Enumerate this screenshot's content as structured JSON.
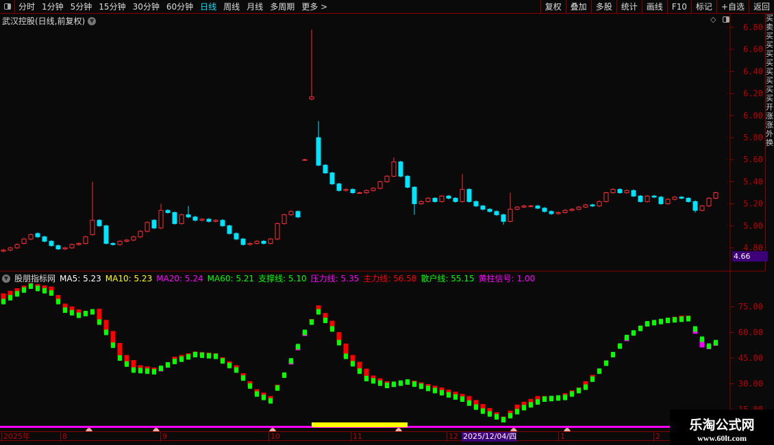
{
  "toolbar": {
    "periods": [
      "分时",
      "1分钟",
      "5分钟",
      "15分钟",
      "30分钟",
      "60分钟",
      "日线",
      "周线",
      "月线",
      "多周期",
      "更多 >"
    ],
    "active_period": "日线",
    "buttons": [
      "复权",
      "叠加",
      "多股",
      "统计",
      "画线",
      "F10",
      "标记",
      "+自选",
      "返回"
    ]
  },
  "chart_title": "武汉控股(日线,前复权)",
  "price_axis": {
    "ticks": [
      "6.80",
      "6.60",
      "6.40",
      "6.20",
      "6.00",
      "5.80",
      "5.60",
      "5.40",
      "5.20",
      "5.00",
      "4.80"
    ],
    "current": "4.66"
  },
  "indicator": {
    "name": "股朋指标网",
    "legend": [
      {
        "label": "MA5: 5.23",
        "color": "#ffffff"
      },
      {
        "label": "MA10: 5.23",
        "color": "#ffff00"
      },
      {
        "label": "MA20: 5.24",
        "color": "#ff00ff"
      },
      {
        "label": "MA60: 5.21",
        "color": "#00ff00"
      },
      {
        "label": "支撑线: 5.10",
        "color": "#00ff00"
      },
      {
        "label": "压力线: 5.35",
        "color": "#ff00ff"
      },
      {
        "label": "主力线: 56.58",
        "color": "#ff0000"
      },
      {
        "label": "散户线: 55.15",
        "color": "#00ff00"
      },
      {
        "label": "黄柱信号: 1.00",
        "color": "#ff00ff"
      }
    ],
    "axis_ticks": [
      "75.00",
      "60.00",
      "45.00",
      "30.00",
      "15.00"
    ]
  },
  "date_axis": [
    {
      "label": "2025年"
    },
    {
      "label": "8"
    },
    {
      "label": "9"
    },
    {
      "label": "10"
    },
    {
      "label": "11"
    },
    {
      "label": "12"
    },
    {
      "label": "2025/12/04/四",
      "highlight": true
    },
    {
      "label": "1"
    },
    {
      "label": "2"
    }
  ],
  "right_column_text": "买卖买买买买买买买买开涨涨外换",
  "watermark": {
    "title": "乐淘公式网",
    "url": "www.60lt.com"
  },
  "colors": {
    "up": "#ff3030",
    "down": "#00e5ff",
    "frame": "#8b0000",
    "axis_text": "#c00000"
  },
  "candles": {
    "close": [
      4.78,
      4.8,
      4.83,
      4.88,
      4.92,
      4.9,
      4.86,
      4.82,
      4.79,
      4.8,
      4.83,
      4.84,
      4.9,
      5.05,
      5.0,
      4.84,
      4.83,
      4.86,
      4.87,
      4.9,
      4.95,
      5.03,
      4.98,
      5.14,
      5.12,
      5.02,
      5.1,
      5.08,
      5.05,
      5.06,
      5.04,
      5.05,
      5.0,
      4.93,
      4.88,
      4.83,
      4.84,
      4.86,
      4.84,
      4.88,
      5.02,
      5.1,
      5.13,
      5.08,
      5.6,
      6.17,
      5.55,
      5.48,
      5.38,
      5.32,
      5.33,
      5.3,
      5.3,
      5.32,
      5.34,
      5.4,
      5.45,
      5.58,
      5.45,
      5.35,
      5.2,
      5.22,
      5.25,
      5.22,
      5.27,
      5.25,
      5.22,
      5.33,
      5.22,
      5.18,
      5.15,
      5.13,
      5.1,
      5.04,
      5.15,
      5.17,
      5.18,
      5.18,
      5.16,
      5.13,
      5.11,
      5.12,
      5.14,
      5.15,
      5.17,
      5.19,
      5.18,
      5.22,
      5.3,
      5.33,
      5.3,
      5.32,
      5.27,
      5.22,
      5.27,
      5.26,
      5.2,
      5.24,
      5.26,
      5.25,
      5.22,
      5.14,
      5.18,
      5.25,
      5.3
    ],
    "open": [
      4.77,
      4.78,
      4.8,
      4.84,
      4.88,
      4.93,
      4.9,
      4.86,
      4.82,
      4.79,
      4.8,
      4.83,
      4.84,
      4.92,
      5.05,
      5.0,
      4.84,
      4.83,
      4.86,
      4.87,
      4.9,
      4.95,
      5.05,
      4.98,
      5.14,
      5.12,
      5.02,
      5.1,
      5.08,
      5.05,
      5.06,
      5.04,
      5.05,
      5.0,
      4.93,
      4.88,
      4.83,
      4.84,
      4.86,
      4.84,
      4.88,
      5.02,
      5.1,
      5.13,
      5.6,
      6.15,
      5.8,
      5.55,
      5.48,
      5.38,
      5.32,
      5.33,
      5.3,
      5.3,
      5.32,
      5.34,
      5.4,
      5.45,
      5.58,
      5.45,
      5.35,
      5.2,
      5.22,
      5.25,
      5.22,
      5.27,
      5.25,
      5.22,
      5.33,
      5.22,
      5.18,
      5.15,
      5.13,
      5.1,
      5.04,
      5.15,
      5.17,
      5.18,
      5.18,
      5.16,
      5.13,
      5.11,
      5.12,
      5.14,
      5.15,
      5.17,
      5.19,
      5.18,
      5.22,
      5.3,
      5.33,
      5.3,
      5.32,
      5.27,
      5.22,
      5.27,
      5.26,
      5.2,
      5.24,
      5.26,
      5.25,
      5.22,
      5.14,
      5.18,
      5.25
    ],
    "spikes_high": {
      "13": 5.4,
      "45": 6.78,
      "46": 5.95,
      "57": 5.62,
      "67": 5.47,
      "74": 5.3,
      "23": 5.2,
      "27": 5.18
    },
    "spikes_low": {
      "60": 5.1,
      "73": 5.01,
      "101": 5.12
    }
  },
  "indicator_lines": {
    "main_red": [
      [
        0,
        82
      ],
      [
        4,
        88
      ],
      [
        7,
        86
      ],
      [
        9,
        76
      ],
      [
        12,
        71
      ],
      [
        14,
        73
      ],
      [
        16,
        60
      ],
      [
        18,
        46
      ],
      [
        20,
        40
      ],
      [
        23,
        38
      ],
      [
        25,
        45
      ],
      [
        28,
        48
      ],
      [
        31,
        47
      ],
      [
        34,
        40
      ],
      [
        37,
        26
      ],
      [
        39,
        22
      ],
      [
        42,
        42
      ],
      [
        45,
        67
      ],
      [
        46,
        75
      ],
      [
        48,
        66
      ],
      [
        51,
        46
      ],
      [
        54,
        34
      ],
      [
        57,
        29
      ],
      [
        60,
        31
      ],
      [
        64,
        27
      ],
      [
        68,
        22
      ],
      [
        71,
        15
      ],
      [
        73,
        10
      ],
      [
        75,
        17
      ],
      [
        78,
        22
      ],
      [
        81,
        22
      ],
      [
        84,
        27
      ],
      [
        87,
        38
      ],
      [
        90,
        52
      ],
      [
        93,
        63
      ],
      [
        96,
        67
      ],
      [
        99,
        69
      ],
      [
        100,
        69
      ],
      [
        101,
        60
      ],
      [
        102,
        52
      ],
      [
        103,
        51
      ],
      [
        104,
        53
      ]
    ],
    "retail_green": [
      [
        0,
        78
      ],
      [
        4,
        87
      ],
      [
        7,
        83
      ],
      [
        9,
        73
      ],
      [
        11,
        70
      ],
      [
        13,
        72
      ],
      [
        15,
        60
      ],
      [
        17,
        45
      ],
      [
        19,
        38
      ],
      [
        22,
        37
      ],
      [
        25,
        43
      ],
      [
        28,
        47
      ],
      [
        31,
        46
      ],
      [
        34,
        38
      ],
      [
        37,
        24
      ],
      [
        39,
        20
      ],
      [
        41,
        35
      ],
      [
        44,
        60
      ],
      [
        46,
        72
      ],
      [
        48,
        62
      ],
      [
        50,
        46
      ],
      [
        53,
        33
      ],
      [
        56,
        29
      ],
      [
        59,
        31
      ],
      [
        63,
        26
      ],
      [
        67,
        21
      ],
      [
        70,
        14
      ],
      [
        73,
        9
      ],
      [
        76,
        16
      ],
      [
        79,
        21
      ],
      [
        82,
        22
      ],
      [
        85,
        28
      ],
      [
        88,
        42
      ],
      [
        91,
        57
      ],
      [
        94,
        65
      ],
      [
        97,
        67
      ],
      [
        100,
        68
      ],
      [
        101,
        62
      ],
      [
        102,
        56
      ],
      [
        103,
        52
      ],
      [
        104,
        54
      ]
    ]
  }
}
